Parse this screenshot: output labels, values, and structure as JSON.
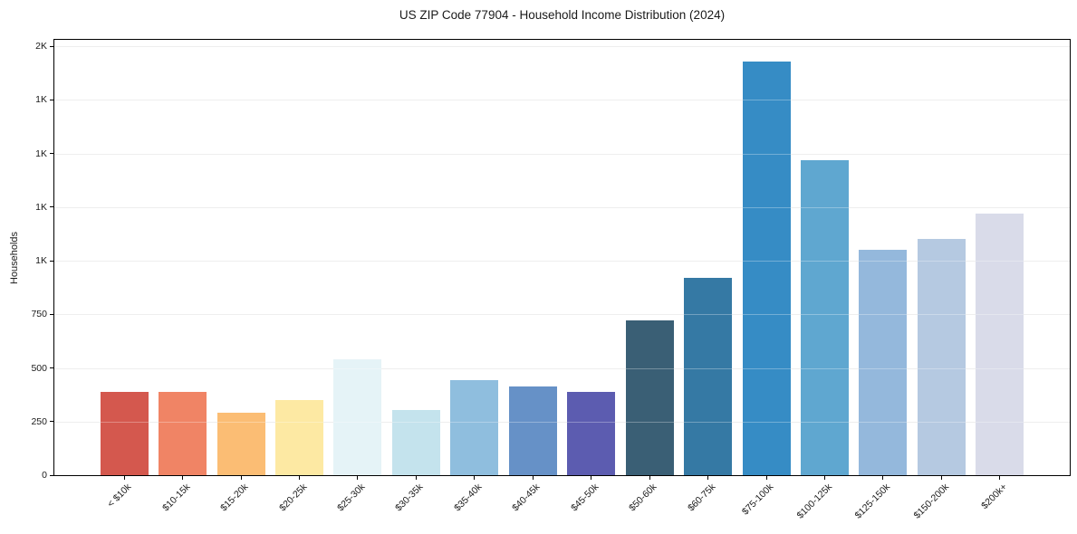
{
  "chart_data": {
    "type": "bar",
    "title": "US ZIP Code 77904 - Household Income Distribution (2024)",
    "xlabel": "",
    "ylabel": "Households",
    "categories": [
      "< $10k",
      "$10-15k",
      "$15-20k",
      "$20-25k",
      "$25-30k",
      "$30-35k",
      "$35-40k",
      "$40-45k",
      "$45-50k",
      "$50-60k",
      "$60-75k",
      "$75-100k",
      "$100-125k",
      "$125-150k",
      "$150-200k",
      "$200k+"
    ],
    "values": [
      390,
      390,
      290,
      350,
      540,
      305,
      445,
      415,
      390,
      720,
      920,
      1930,
      1470,
      1050,
      1100,
      1220
    ],
    "bar_colors": [
      "#d4584e",
      "#f08465",
      "#fbbd74",
      "#fde9a3",
      "#e5f3f7",
      "#c4e3ed",
      "#8fbede",
      "#6691c7",
      "#5c5cb0",
      "#3a5f75",
      "#3579a4",
      "#368cc5",
      "#5fa7d0",
      "#94b8dc",
      "#b5c9e1",
      "#d9dbe9"
    ],
    "yticks": [
      {
        "value": 0,
        "label": "0"
      },
      {
        "value": 250,
        "label": "250"
      },
      {
        "value": 500,
        "label": "500"
      },
      {
        "value": 750,
        "label": "750"
      },
      {
        "value": 1000,
        "label": "1K"
      },
      {
        "value": 1250,
        "label": "1K"
      },
      {
        "value": 1500,
        "label": "1K"
      },
      {
        "value": 1750,
        "label": "1K"
      },
      {
        "value": 2000,
        "label": "2K"
      }
    ],
    "ylim": [
      0,
      2030
    ],
    "grid": "horizontal",
    "legend": "none",
    "colors": {
      "background": "#ffffff",
      "axis": "#000000",
      "grid": "#e7e7e7",
      "text": "#1a1a1a"
    }
  }
}
